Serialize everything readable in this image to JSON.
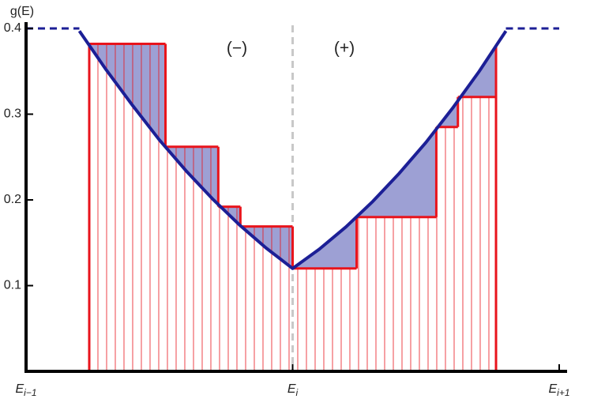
{
  "chart_data": {
    "type": "line",
    "y_label": "g(E)",
    "annotations": [
      "(−)",
      "(+)"
    ],
    "xlim": [
      -1,
      1
    ],
    "ylim": [
      0,
      0.4
    ],
    "xticks": [
      {
        "value": -1,
        "label": "E",
        "sub": "i−1"
      },
      {
        "value": 0,
        "label": "E",
        "sub": "i"
      },
      {
        "value": 1,
        "label": "E",
        "sub": "i+1"
      }
    ],
    "yticks": [
      0.1,
      0.2,
      0.3,
      0.4
    ],
    "divider_x": 0,
    "series": [
      {
        "color": "#1c1f96",
        "x": [
          -0.8,
          -0.7,
          -0.6,
          -0.5,
          -0.4,
          -0.3,
          -0.2,
          -0.1,
          0,
          0.1,
          0.2,
          0.3,
          0.4,
          0.5,
          0.6,
          0.7,
          0.8
        ],
        "values": [
          0.397,
          0.352,
          0.31,
          0.27,
          0.234,
          0.201,
          0.171,
          0.144,
          0.12,
          0.1425,
          0.1685,
          0.198,
          0.231,
          0.267,
          0.307,
          0.35,
          0.397
        ]
      }
    ],
    "plateau": [
      {
        "x": [
          -1,
          -0.8
        ],
        "values": [
          0.4,
          0.4
        ]
      },
      {
        "x": [
          0.8,
          1
        ],
        "values": [
          0.4,
          0.4
        ]
      }
    ],
    "steps": {
      "color": "#e8141c",
      "bins": [
        -0.763,
        -0.477,
        -0.279,
        -0.196,
        0,
        0.24,
        0.539,
        0.62,
        0.763
      ],
      "values": [
        0.382,
        0.262,
        0.192,
        0.169,
        0.12,
        0.18,
        0.285,
        0.32
      ]
    },
    "shade_color": "#9da0d4"
  }
}
